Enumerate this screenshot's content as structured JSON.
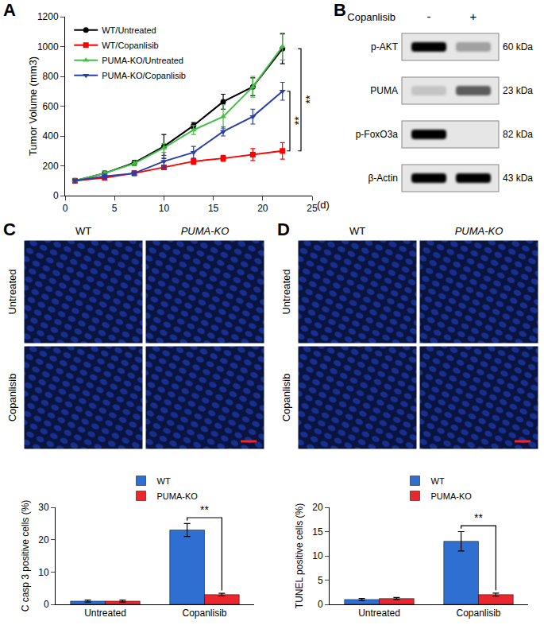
{
  "chart_data": [
    {
      "type": "line",
      "panel": "A",
      "x": [
        1,
        4,
        7,
        10,
        13,
        16,
        19,
        22
      ],
      "x_label": "(d)",
      "y_label": "Tumor Volume (mm3)",
      "xlim": [
        0,
        25
      ],
      "xticks": [
        0,
        5,
        10,
        15,
        20,
        25
      ],
      "ylim": [
        0,
        1200
      ],
      "yticks": [
        0,
        200,
        400,
        600,
        800,
        1000,
        1200
      ],
      "legend": "upper left",
      "series": [
        {
          "name": "WT/Untreated",
          "color": "#000000",
          "marker": "circle",
          "values": [
            100,
            150,
            220,
            330,
            470,
            630,
            730,
            985
          ],
          "errors": [
            10,
            15,
            15,
            80,
            20,
            50,
            60,
            100
          ]
        },
        {
          "name": "WT/Copanlisib",
          "color": "#ff0000",
          "marker": "square",
          "values": [
            100,
            120,
            150,
            190,
            230,
            250,
            275,
            300
          ],
          "errors": [
            10,
            10,
            15,
            15,
            20,
            20,
            40,
            55
          ]
        },
        {
          "name": "PUMA-KO/Untreated",
          "color": "#44c044",
          "marker": "triangle-up",
          "values": [
            100,
            150,
            215,
            320,
            440,
            530,
            730,
            1000
          ],
          "errors": [
            10,
            15,
            15,
            30,
            30,
            80,
            70,
            90
          ]
        },
        {
          "name": "PUMA-KO/Copanlisib",
          "color": "#2a3fa8",
          "marker": "triangle-down",
          "values": [
            100,
            130,
            150,
            230,
            290,
            430,
            530,
            700
          ],
          "errors": [
            10,
            15,
            15,
            40,
            40,
            30,
            50,
            60
          ]
        }
      ],
      "brackets": [
        {
          "text": "**",
          "between": [
            "WT/Copanlisib",
            "PUMA-KO/Copanlisib"
          ]
        },
        {
          "text": "**",
          "between": [
            "WT/Copanlisib",
            "WT/Untreated"
          ]
        }
      ]
    },
    {
      "type": "bar",
      "y_label": "C casp 3 positive cells (%)",
      "categories": [
        "Untreated",
        "Copanlisib"
      ],
      "ylim": [
        0,
        30
      ],
      "yticks": [
        0,
        10,
        20,
        30
      ],
      "legend": "top",
      "series": [
        {
          "name": "WT",
          "color": "#2f6fd1",
          "values": [
            1,
            23
          ],
          "errors": [
            0.3,
            2
          ]
        },
        {
          "name": "PUMA-KO",
          "color": "#e8282e",
          "values": [
            1,
            3
          ],
          "errors": [
            0.3,
            0.4
          ]
        }
      ],
      "brackets": [
        {
          "text": "**",
          "category": "Copanlisib"
        }
      ]
    },
    {
      "type": "bar",
      "y_label": "TUNEL positive cells (%)",
      "categories": [
        "Untreated",
        "Copanlisib"
      ],
      "ylim": [
        0,
        20
      ],
      "yticks": [
        0,
        5,
        10,
        15,
        20
      ],
      "legend": "top",
      "series": [
        {
          "name": "WT",
          "color": "#2f6fd1",
          "values": [
            1,
            13
          ],
          "errors": [
            0.2,
            2
          ]
        },
        {
          "name": "PUMA-KO",
          "color": "#e8282e",
          "values": [
            1.2,
            2
          ],
          "errors": [
            0.2,
            0.3
          ]
        }
      ],
      "brackets": [
        {
          "text": "**",
          "category": "Copanlisib"
        }
      ]
    }
  ],
  "blot": {
    "panel": "B",
    "treatment": "Copanlisib",
    "lanes": [
      "-",
      "+"
    ],
    "bands": [
      {
        "name": "p-AKT",
        "size": "60 kDa",
        "intensity": [
          1,
          0.3
        ]
      },
      {
        "name": "PUMA",
        "size": "23 kDa",
        "intensity": [
          0.15,
          0.6
        ]
      },
      {
        "name": "p-FoxO3a",
        "size": "82 kDa",
        "intensity": [
          1,
          0
        ]
      },
      {
        "name": "β-Actin",
        "size": "43 kDa",
        "intensity": [
          1,
          1
        ]
      }
    ]
  },
  "images": [
    {
      "panel": "C",
      "columns": [
        "WT",
        "PUMA-KO"
      ],
      "rows": [
        "Untreated",
        "Copanlisib"
      ]
    },
    {
      "panel": "D",
      "columns": [
        "WT",
        "PUMA-KO"
      ],
      "rows": [
        "Untreated",
        "Copanlisib"
      ]
    }
  ]
}
